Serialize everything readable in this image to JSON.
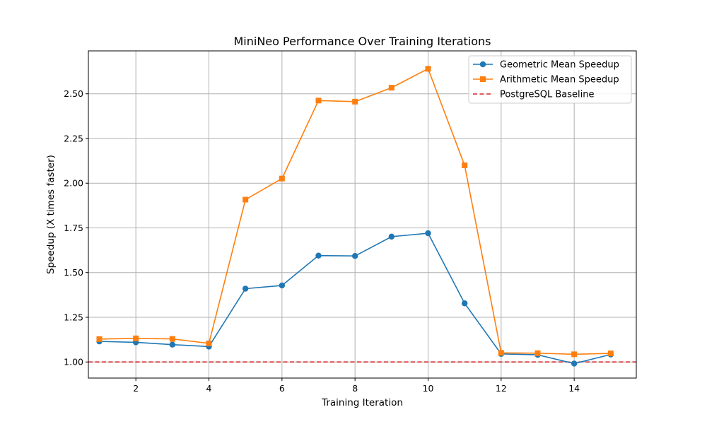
{
  "chart_data": {
    "type": "line",
    "title": "MiniNeo Performance Over Training Iterations",
    "xlabel": "Training Iteration",
    "ylabel": "Speedup (X times faster)",
    "xlim": [
      0.7,
      15.7
    ],
    "ylim": [
      0.91,
      2.74
    ],
    "x_ticks": [
      2,
      4,
      6,
      8,
      10,
      12,
      14
    ],
    "x_tick_labels": [
      "2",
      "4",
      "6",
      "8",
      "10",
      "12",
      "14"
    ],
    "y_ticks": [
      1.0,
      1.25,
      1.5,
      1.75,
      2.0,
      2.25,
      2.5
    ],
    "y_tick_labels": [
      "1.00",
      "1.25",
      "1.50",
      "1.75",
      "2.00",
      "2.25",
      "2.50"
    ],
    "grid": true,
    "legend_position": "top-right",
    "x": [
      1,
      2,
      3,
      4,
      5,
      6,
      7,
      8,
      9,
      10,
      11,
      12,
      13,
      14,
      15
    ],
    "series": [
      {
        "name": "Geometric Mean Speedup",
        "color": "#1f77b4",
        "marker": "circle",
        "values": [
          1.115,
          1.11,
          1.097,
          1.086,
          1.41,
          1.428,
          1.595,
          1.593,
          1.701,
          1.72,
          1.328,
          1.045,
          1.04,
          0.991,
          1.042
        ]
      },
      {
        "name": "Arithmetic Mean Speedup",
        "color": "#ff7f0e",
        "marker": "square",
        "values": [
          1.128,
          1.132,
          1.129,
          1.104,
          1.908,
          2.026,
          2.462,
          2.456,
          2.534,
          2.64,
          2.1,
          1.051,
          1.049,
          1.043,
          1.048
        ]
      }
    ],
    "baseline": {
      "name": "PostgreSQL Baseline",
      "value": 1.0,
      "color": "#d62728",
      "style": "dashed"
    }
  }
}
